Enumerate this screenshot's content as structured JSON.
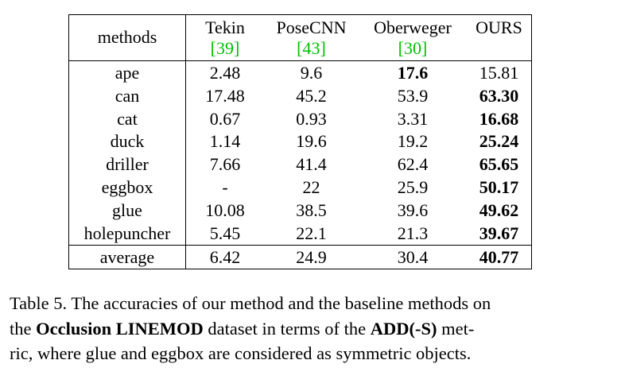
{
  "table": {
    "header": {
      "methods": "methods",
      "columns": [
        {
          "name": "Tekin",
          "cite": "[39]"
        },
        {
          "name": "PoseCNN",
          "cite": "[43]"
        },
        {
          "name": "Oberweger",
          "cite": "[30]"
        },
        {
          "name": "OURS",
          "cite": ""
        }
      ]
    },
    "rows": [
      {
        "method": "ape",
        "values": [
          "2.48",
          "9.6",
          "17.6",
          "15.81"
        ],
        "bold": 2
      },
      {
        "method": "can",
        "values": [
          "17.48",
          "45.2",
          "53.9",
          "63.30"
        ],
        "bold": 3
      },
      {
        "method": "cat",
        "values": [
          "0.67",
          "0.93",
          "3.31",
          "16.68"
        ],
        "bold": 3
      },
      {
        "method": "duck",
        "values": [
          "1.14",
          "19.6",
          "19.2",
          "25.24"
        ],
        "bold": 3
      },
      {
        "method": "driller",
        "values": [
          "7.66",
          "41.4",
          "62.4",
          "65.65"
        ],
        "bold": 3
      },
      {
        "method": "eggbox",
        "values": [
          "-",
          "22",
          "25.9",
          "50.17"
        ],
        "bold": 3
      },
      {
        "method": "glue",
        "values": [
          "10.08",
          "38.5",
          "39.6",
          "49.62"
        ],
        "bold": 3
      },
      {
        "method": "holepuncher",
        "values": [
          "5.45",
          "22.1",
          "21.3",
          "39.67"
        ],
        "bold": 3
      }
    ],
    "average": {
      "method": "average",
      "values": [
        "6.42",
        "24.9",
        "30.4",
        "40.77"
      ],
      "bold": 3
    }
  },
  "caption": {
    "line1": "Table 5. The accuracies of our method and the baseline methods on",
    "line2_pre": "the ",
    "line2_bold1": "Occlusion LINEMOD",
    "line2_mid": " dataset in terms of the ",
    "line2_bold2": "ADD(-S)",
    "line2_post": " met-",
    "line3": "ric, where glue and eggbox are considered as symmetric objects."
  },
  "colors": {
    "citation": "#00c000",
    "text": "#000000"
  }
}
